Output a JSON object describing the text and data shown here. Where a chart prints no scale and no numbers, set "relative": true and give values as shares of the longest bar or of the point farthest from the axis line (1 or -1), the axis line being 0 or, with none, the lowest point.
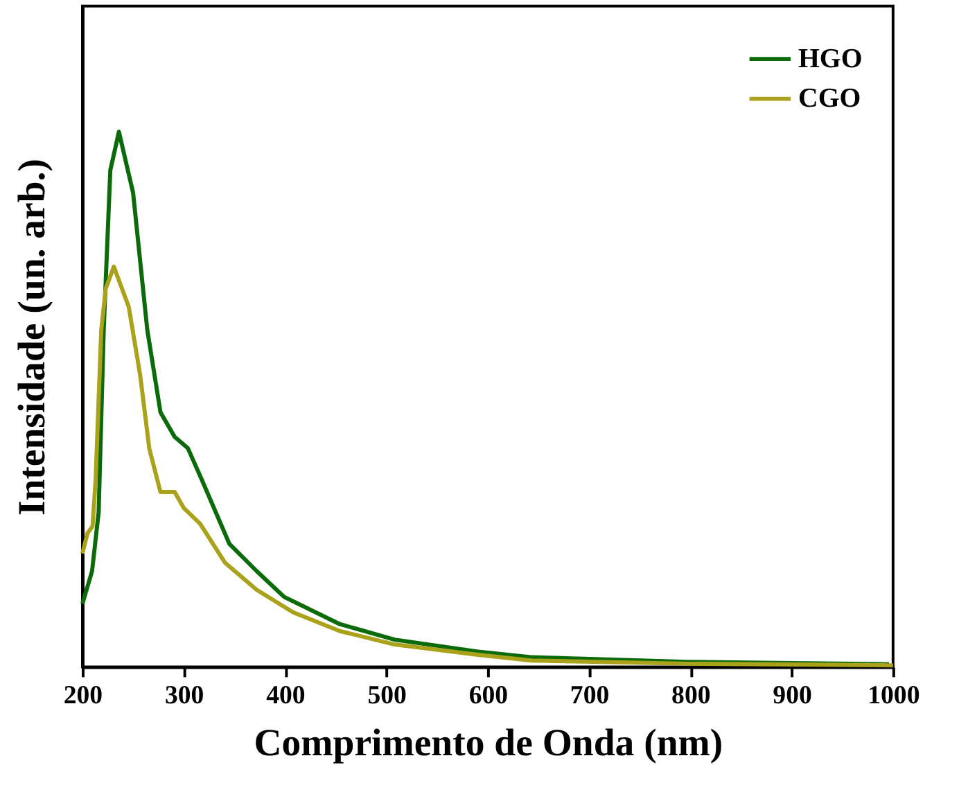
{
  "chart_data": {
    "type": "line",
    "relative": true,
    "xlabel": "Comprimento de Onda (nm)",
    "ylabel": "Intensidade (un. arb.)",
    "xlim": [
      200,
      1000
    ],
    "xticks": [
      200,
      300,
      400,
      500,
      600,
      700,
      800,
      900,
      1000
    ],
    "legend": "top right",
    "grid": false,
    "tick_labels": "x",
    "line_style": "solid",
    "series": [
      {
        "name": "HGO",
        "color": "#0b6b0b",
        "x": [
          200,
          209.5,
          216,
          221,
          227.5,
          236,
          250,
          264,
          277,
          291,
          304,
          318,
          345,
          372,
          399,
          454,
          508,
          589,
          643,
          797,
          996
        ],
        "values": [
          0.118,
          0.179,
          0.289,
          0.63,
          0.928,
          1.0,
          0.886,
          0.63,
          0.476,
          0.43,
          0.409,
          0.349,
          0.23,
          0.179,
          0.131,
          0.08,
          0.051,
          0.029,
          0.018,
          0.0095,
          0.005
        ]
      },
      {
        "name": "CGO",
        "color": "#aaa21a",
        "x": [
          200,
          205,
          210,
          213,
          218.6,
          223,
          231,
          245.7,
          257,
          266,
          277,
          291,
          300,
          316,
          340.6,
          372,
          408,
          454,
          508,
          589,
          643,
          797,
          1000
        ],
        "values": [
          0.212,
          0.25,
          0.263,
          0.349,
          0.63,
          0.707,
          0.748,
          0.673,
          0.545,
          0.408,
          0.327,
          0.327,
          0.297,
          0.268,
          0.195,
          0.144,
          0.102,
          0.067,
          0.042,
          0.023,
          0.012,
          0.006,
          0.003
        ]
      }
    ]
  }
}
